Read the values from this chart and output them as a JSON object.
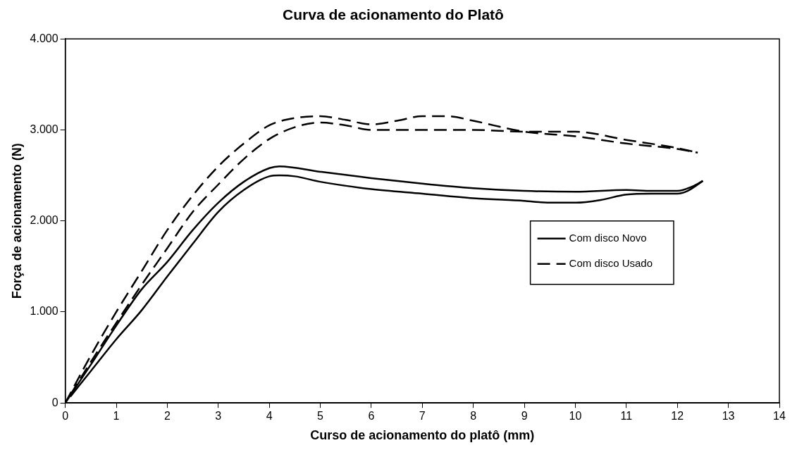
{
  "chart_data": {
    "type": "line",
    "title": "Curva de acionamento do Platô",
    "xlabel": "Curso de acionamento do platô (mm)",
    "ylabel": "Força de acionamento (N)",
    "xlim": [
      0,
      14
    ],
    "xticks": [
      0,
      1,
      2,
      3,
      4,
      5,
      6,
      7,
      8,
      9,
      10,
      11,
      12,
      13,
      14
    ],
    "ylim": [
      0,
      4000
    ],
    "yticks": [
      {
        "value": 0,
        "label": "0"
      },
      {
        "value": 1000,
        "label": "1.000"
      },
      {
        "value": 2000,
        "label": "2.000"
      },
      {
        "value": 3000,
        "label": "3.000"
      },
      {
        "value": 4000,
        "label": "4.000"
      }
    ],
    "grid": false,
    "legend": "right",
    "marker": "none",
    "series": [
      {
        "name": "Com disco Novo",
        "color": "#000000",
        "line_style": "solid",
        "x": [
          0,
          0.5,
          1,
          1.5,
          2,
          2.5,
          3,
          3.5,
          4,
          4.2,
          5,
          6,
          7,
          8,
          9,
          10,
          11,
          11.5,
          12,
          12.3,
          12.5
        ],
        "values": [
          0,
          420,
          850,
          1250,
          1550,
          1900,
          2200,
          2430,
          2580,
          2600,
          2540,
          2470,
          2410,
          2360,
          2330,
          2320,
          2340,
          2330,
          2330,
          2380,
          2440
        ]
      },
      {
        "color": "#000000",
        "line_style": "solid",
        "x": [
          0.1,
          0.5,
          1,
          1.5,
          2,
          2.5,
          3,
          3.5,
          4,
          4.2,
          4.5,
          5,
          6,
          7,
          8,
          9,
          9.5,
          10,
          10.5,
          11,
          11.5,
          12,
          12.2,
          12.5
        ],
        "values": [
          70,
          350,
          700,
          1020,
          1390,
          1750,
          2100,
          2340,
          2490,
          2500,
          2490,
          2430,
          2350,
          2300,
          2250,
          2220,
          2200,
          2200,
          2230,
          2290,
          2300,
          2300,
          2330,
          2440
        ]
      },
      {
        "name": "Com disco Usado",
        "color": "#000000",
        "line_style": "dashed",
        "x": [
          0,
          0.5,
          1,
          1.5,
          2,
          2.5,
          3,
          3.5,
          4,
          4.5,
          5,
          5.5,
          6,
          6.5,
          7,
          7.5,
          8,
          9,
          10,
          11,
          12,
          12.4
        ],
        "values": [
          0,
          520,
          1000,
          1450,
          1900,
          2280,
          2600,
          2850,
          3050,
          3130,
          3150,
          3110,
          3060,
          3100,
          3150,
          3150,
          3100,
          2980,
          2930,
          2850,
          2790,
          2750
        ]
      },
      {
        "color": "#000000",
        "line_style": "dashed",
        "x": [
          0.1,
          0.5,
          1,
          1.5,
          2,
          2.5,
          3,
          3.5,
          4,
          4.5,
          5,
          5.5,
          6,
          7,
          8,
          9,
          10,
          11,
          12,
          12.4
        ],
        "values": [
          90,
          450,
          880,
          1300,
          1700,
          2100,
          2400,
          2680,
          2900,
          3030,
          3080,
          3050,
          3000,
          3000,
          3000,
          2980,
          2980,
          2890,
          2800,
          2750
        ]
      }
    ]
  }
}
